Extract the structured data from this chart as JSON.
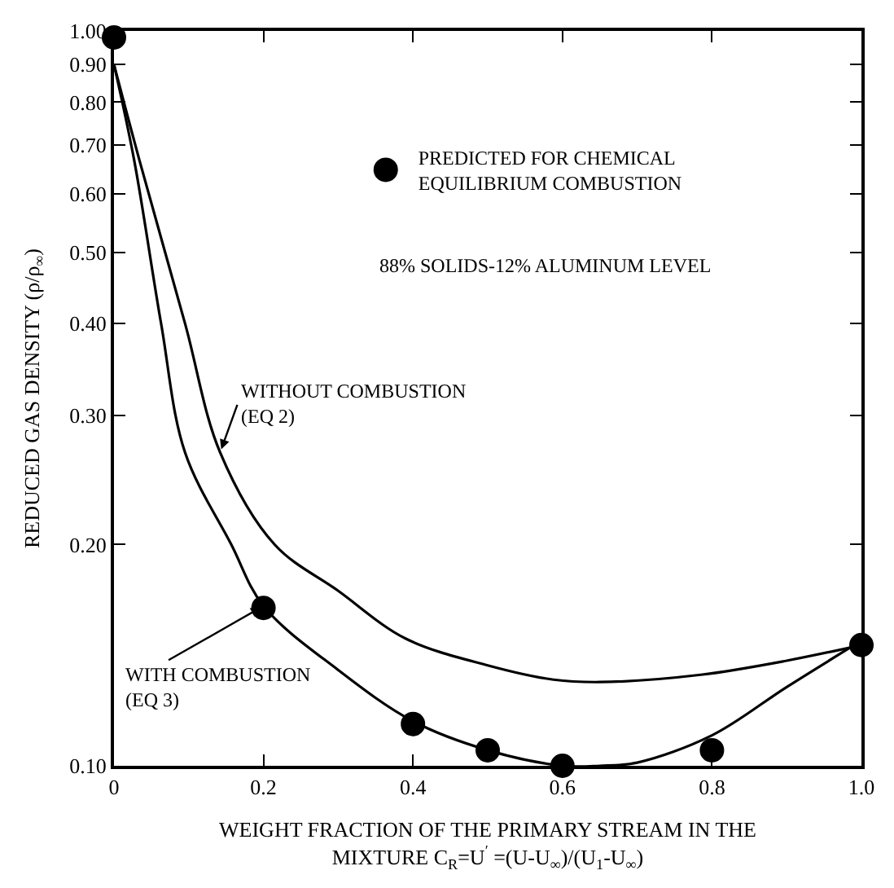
{
  "chart_data": {
    "type": "line",
    "xlabel": "WEIGHT FRACTION OF THE PRIMARY STREAM IN THE\nMIXTURE C$_{R}$=U$^{′}$ =(U-U$_{∞}$)/(U$_{1}$-U$_{∞}$)",
    "ylabel": "REDUCED GAS DENSITY (ρ/ρ$_{∞}$)",
    "annotations": [
      "88% SOLIDS-12% ALUMINUM LEVEL"
    ],
    "series": [
      {
        "name": "WITHOUT COMBUSTION\n(EQ 2)",
        "color": "#000000",
        "x": [
          0,
          0.034,
          0.095,
          0.142,
          0.215,
          0.3,
          0.39,
          0.5,
          0.588,
          0.65,
          0.785,
          0.9,
          1.0
        ],
        "values": [
          0.9,
          0.667,
          0.4,
          0.267,
          0.2,
          0.173,
          0.149,
          0.137,
          0.131,
          0.13,
          0.133,
          0.139,
          0.146
        ]
      },
      {
        "name": "WITH COMBUSTION\n(EQ 3)",
        "color": "#000000",
        "x": [
          0,
          0.027,
          0.063,
          0.095,
          0.157,
          0.2,
          0.3,
          0.4,
          0.5,
          0.6,
          0.65,
          0.7,
          0.8,
          0.9,
          1.0
        ],
        "values": [
          0.9,
          0.667,
          0.4,
          0.267,
          0.2,
          0.165,
          0.135,
          0.115,
          0.105,
          0.1,
          0.1,
          0.101,
          0.11,
          0.128,
          0.148
        ]
      },
      {
        "name": "PREDICTED FOR CHEMICAL\nEQUILIBRIUM COMBUSTION",
        "type": "scatter",
        "marker": "circle",
        "color": "#000000",
        "x": [
          0,
          0.2,
          0.4,
          0.5,
          0.6,
          0.8,
          1.0
        ],
        "values": [
          0.98,
          0.164,
          0.114,
          0.105,
          0.1,
          0.105,
          0.146
        ]
      }
    ],
    "log": "y",
    "xlim": [
      0,
      1.0
    ],
    "ylim": [
      0.1,
      1.0
    ],
    "xticks": [
      0,
      0.2,
      0.4,
      0.6,
      0.8,
      {
        "value": 1.0,
        "label": "1.0"
      }
    ],
    "yticks": [
      {
        "value": 0.1,
        "label": "0.10"
      },
      {
        "value": 0.2,
        "label": "0.20"
      },
      {
        "value": 0.3,
        "label": "0.30"
      },
      {
        "value": 0.4,
        "label": "0.40"
      },
      {
        "value": 0.5,
        "label": "0.50"
      },
      {
        "value": 0.6,
        "label": "0.60"
      },
      {
        "value": 0.7,
        "label": "0.70"
      },
      {
        "value": 0.8,
        "label": "0.80"
      },
      {
        "value": 0.9,
        "label": "0.90"
      },
      {
        "value": 1.0,
        "label": "1.00"
      }
    ],
    "legend": "top"
  }
}
